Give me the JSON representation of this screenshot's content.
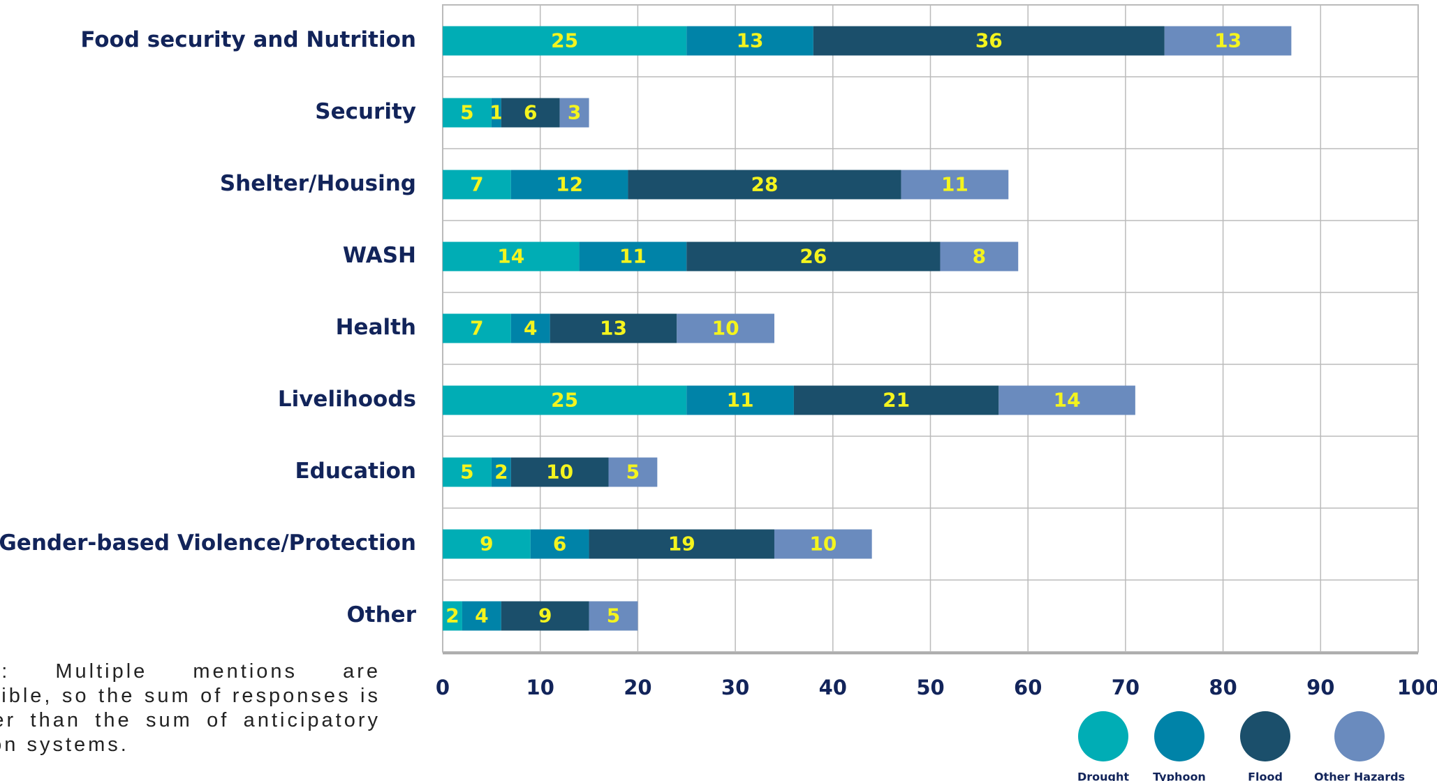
{
  "chart_data": {
    "type": "stacked_barh",
    "categories": [
      "Food security and Nutrition",
      "Security",
      "Shelter/Housing",
      "WASH",
      "Health",
      "Livelihoods",
      "Education",
      "Gender-based Violence/Protection",
      "Other"
    ],
    "series": [
      {
        "name": "Drought",
        "color": "#00adb5",
        "values": [
          25,
          5,
          7,
          14,
          7,
          25,
          5,
          9,
          2
        ]
      },
      {
        "name": "Typhoon",
        "color": "#0083a8",
        "values": [
          13,
          1,
          12,
          11,
          4,
          11,
          2,
          6,
          4
        ]
      },
      {
        "name": "Flood",
        "color": "#1b4f6b",
        "values": [
          36,
          6,
          28,
          26,
          13,
          21,
          10,
          19,
          9
        ]
      },
      {
        "name": "Other Hazards",
        "color": "#6a8bbe",
        "values": [
          13,
          3,
          11,
          8,
          10,
          14,
          5,
          10,
          5
        ]
      }
    ],
    "xlim": [
      0,
      100
    ],
    "xticks": [
      0,
      10,
      20,
      30,
      40,
      50,
      60,
      70,
      80,
      90,
      100
    ],
    "grid": true,
    "note": "Note: Multiple mentions are possible, so the sum of responses is larger than the sum of anticipatory action systems."
  }
}
